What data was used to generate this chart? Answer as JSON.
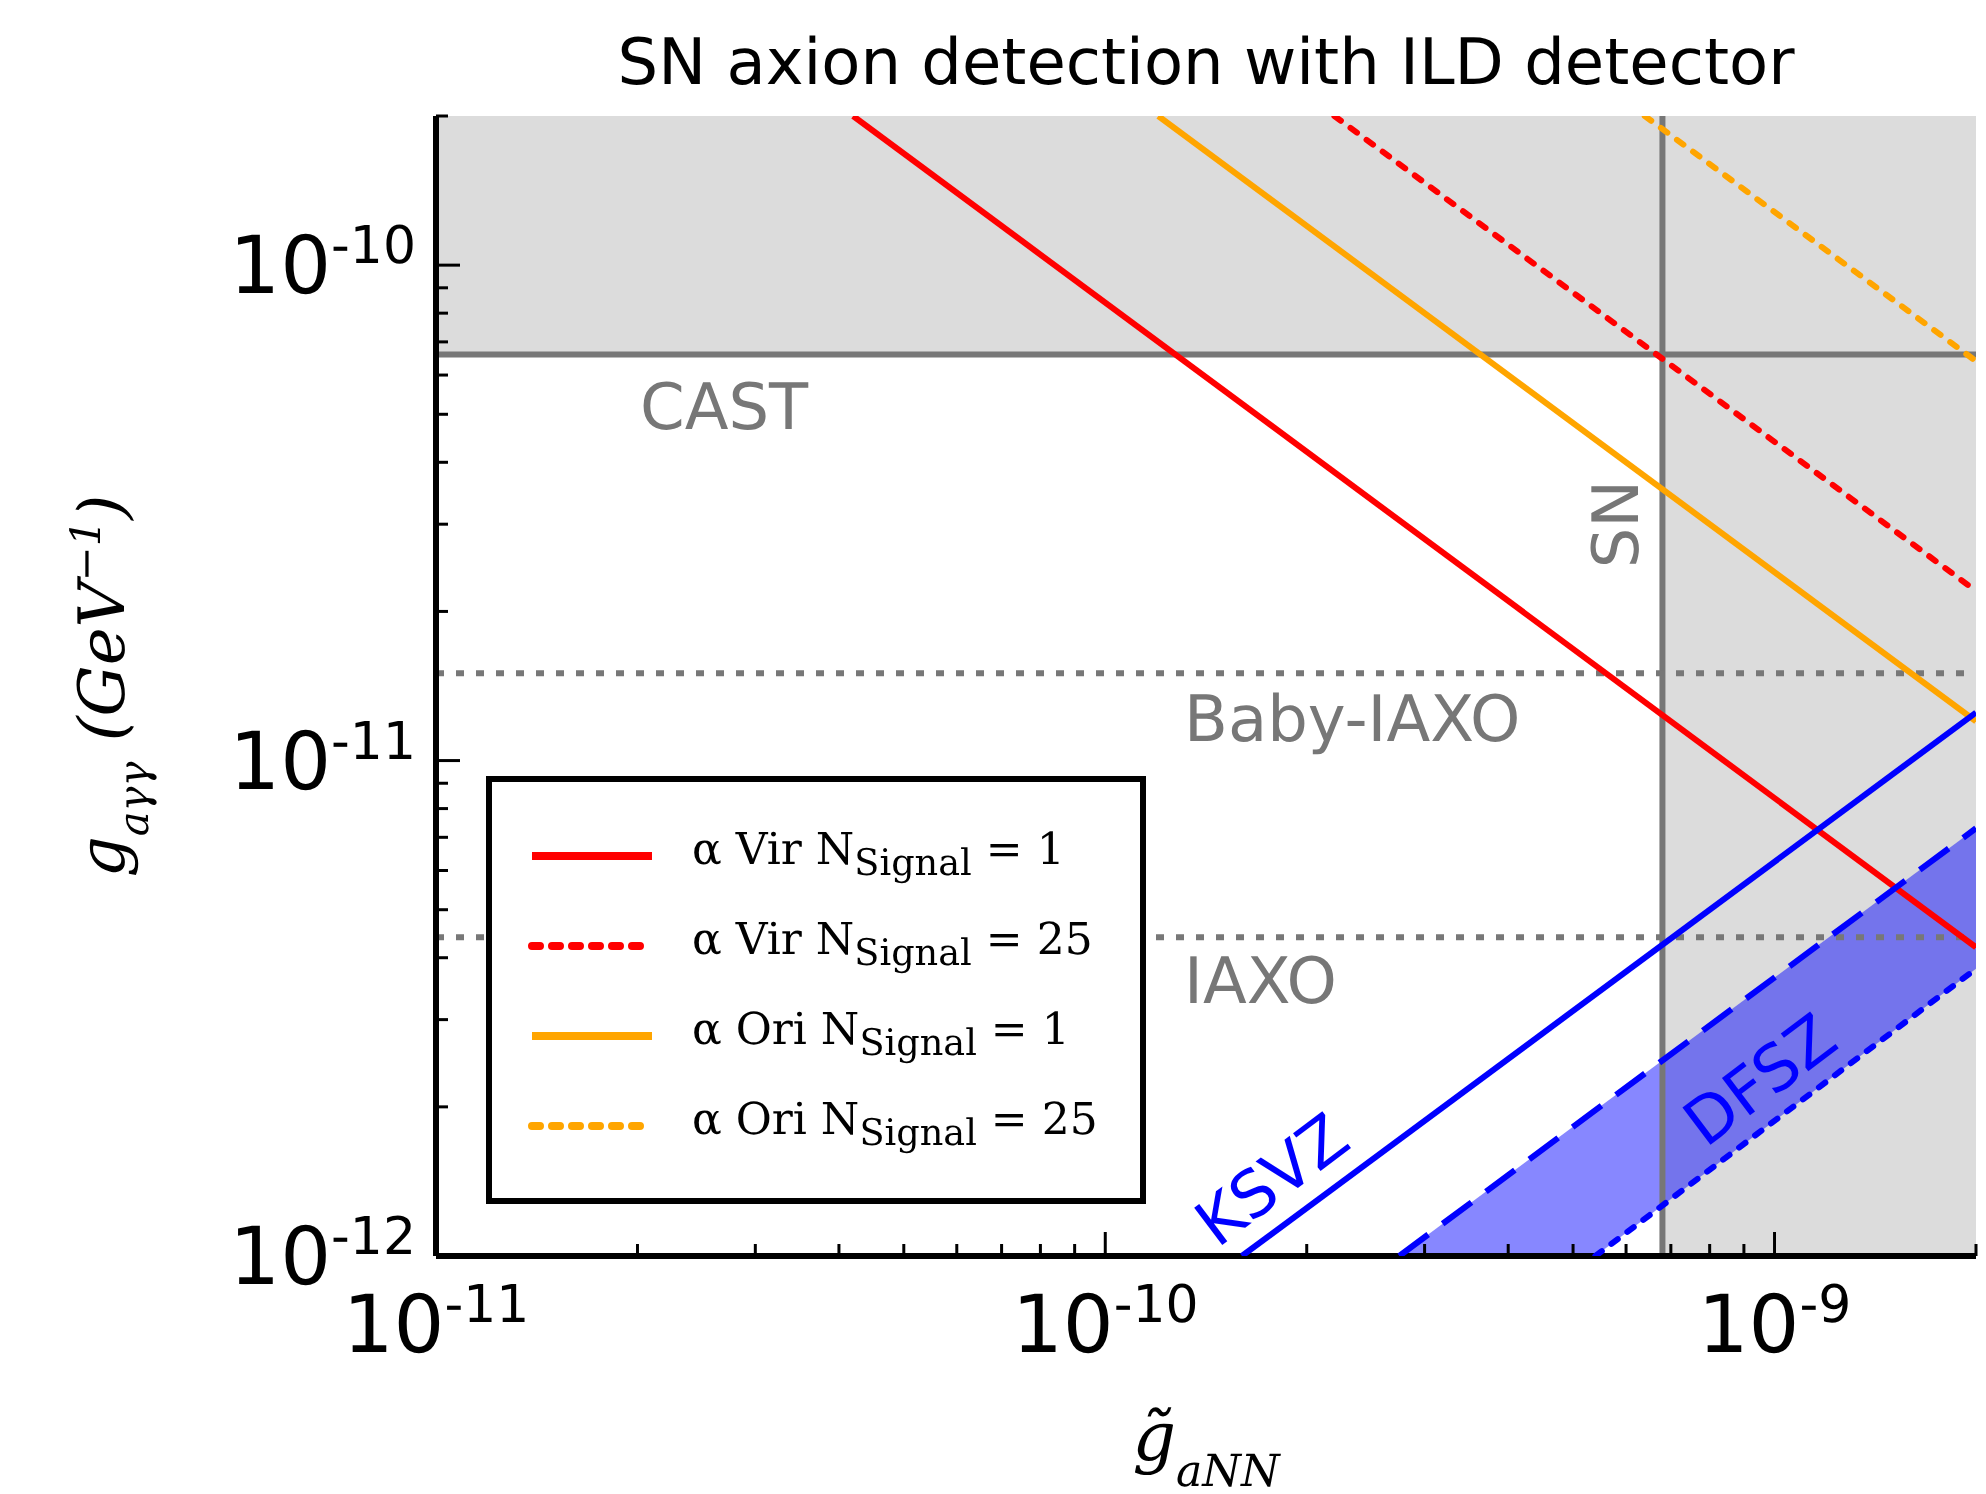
{
  "chart_data": {
    "type": "line",
    "title": "SN axion detection with ILD detector",
    "xlabel": "g̃$_{aNN}$",
    "ylabel": "g$_{aγγ}$  (GeV$^{−1}$)",
    "log": "xy",
    "grid": false,
    "legend": "bottom left",
    "xlim": [
      1e-11,
      2e-09
    ],
    "ylim": [
      1e-12,
      2e-10
    ],
    "xticks": [
      {
        "value": 1e-11,
        "label": "10$^{-11}$"
      },
      {
        "value": 2e-11,
        "label": null
      },
      {
        "value": 3e-11,
        "label": null
      },
      {
        "value": 4e-11,
        "label": null
      },
      {
        "value": 5e-11,
        "label": null
      },
      {
        "value": 6e-11,
        "label": null
      },
      {
        "value": 7e-11,
        "label": null
      },
      {
        "value": 8e-11,
        "label": null
      },
      {
        "value": 9e-11,
        "label": null
      },
      {
        "value": 1e-10,
        "label": "10$^{-10}$"
      },
      {
        "value": 2e-10,
        "label": null
      },
      {
        "value": 3e-10,
        "label": null
      },
      {
        "value": 4e-10,
        "label": null
      },
      {
        "value": 5e-10,
        "label": null
      },
      {
        "value": 6e-10,
        "label": null
      },
      {
        "value": 7e-10,
        "label": null
      },
      {
        "value": 8e-10,
        "label": null
      },
      {
        "value": 9e-10,
        "label": null
      },
      {
        "value": 1e-09,
        "label": "10$^{-9}$"
      },
      {
        "value": 2e-09,
        "label": null
      }
    ],
    "yticks": [
      {
        "value": 1e-12,
        "label": "10$^{-12}$"
      },
      {
        "value": 2e-12,
        "label": null
      },
      {
        "value": 3e-12,
        "label": null
      },
      {
        "value": 4e-12,
        "label": null
      },
      {
        "value": 5e-12,
        "label": null
      },
      {
        "value": 6e-12,
        "label": null
      },
      {
        "value": 7e-12,
        "label": null
      },
      {
        "value": 8e-12,
        "label": null
      },
      {
        "value": 9e-12,
        "label": null
      },
      {
        "value": 1e-11,
        "label": "10$^{-11}$"
      },
      {
        "value": 2e-11,
        "label": null
      },
      {
        "value": 3e-11,
        "label": null
      },
      {
        "value": 4e-11,
        "label": null
      },
      {
        "value": 5e-11,
        "label": null
      },
      {
        "value": 6e-11,
        "label": null
      },
      {
        "value": 7e-11,
        "label": null
      },
      {
        "value": 8e-11,
        "label": null
      },
      {
        "value": 9e-11,
        "label": null
      },
      {
        "value": 1e-10,
        "label": "10$^{-10}$"
      },
      {
        "value": 2e-10,
        "label": null
      }
    ],
    "bands": [
      {
        "axis": "y",
        "from": 6.6e-11,
        "to": 2e-10,
        "color": "#dcdcdc"
      },
      {
        "axis": "x",
        "from": 6.8e-10,
        "to": 2e-09,
        "color": "#dcdcdc"
      }
    ],
    "ref_lines": [
      {
        "axis": "y",
        "value": 6.6e-11,
        "label": "CAST",
        "color": "#777777",
        "line_style": "solid"
      },
      {
        "axis": "x",
        "value": 6.8e-10,
        "label": "SN",
        "color": "#777777",
        "line_style": "solid"
      },
      {
        "axis": "y",
        "value": 1.5e-11,
        "label": "Baby-IAXO",
        "color": "#777777",
        "line_style": "dotted"
      },
      {
        "axis": "y",
        "value": 4.4e-12,
        "label": "IAXO",
        "color": "#777777",
        "line_style": "dotted"
      }
    ],
    "series": [
      {
        "name": "α Vir N$_{Signal}$ = 1",
        "color": "#ff0000",
        "line_style": "solid",
        "x": [
          4.2e-11,
          2e-09
        ],
        "values": [
          2e-10,
          4.2e-12
        ]
      },
      {
        "name": "α Vir N$_{Signal}$ = 25",
        "color": "#ff0000",
        "line_style": "dotted",
        "x": [
          2.2e-10,
          2e-09
        ],
        "values": [
          2e-10,
          2.2e-11
        ]
      },
      {
        "name": "α Ori N$_{Signal}$ = 1",
        "color": "#ffa500",
        "line_style": "solid",
        "x": [
          1.2e-10,
          2e-09
        ],
        "values": [
          2e-10,
          1.2e-11
        ]
      },
      {
        "name": "α Ori N$_{Signal}$ = 25",
        "color": "#ffa500",
        "line_style": "dotted",
        "x": [
          6.4e-10,
          2e-09
        ],
        "values": [
          2e-10,
          6.4e-11
        ]
      },
      {
        "color": "#0000ff",
        "line_style": "solid",
        "x": [
          1.6e-10,
          2e-09
        ],
        "values": [
          1e-12,
          1.25e-11
        ]
      },
      {
        "color": "#0000ff",
        "line_style": "dashed",
        "x": [
          2.75e-10,
          5.4e-10,
          2e-09
        ],
        "values": [
          1e-12,
          1.97e-12,
          7.3e-12
        ],
        "lower": [
          1e-12,
          1e-12,
          3.8e-12
        ],
        "upper": [
          1e-12,
          1.97e-12,
          7.3e-12
        ]
      },
      {
        "color": "#0000ff",
        "line_style": "dotted",
        "x": [
          5.4e-10,
          2e-09
        ],
        "values": [
          1e-12,
          3.8e-12
        ]
      }
    ],
    "annotations": [
      "KSVZ",
      "DFSZ"
    ]
  }
}
